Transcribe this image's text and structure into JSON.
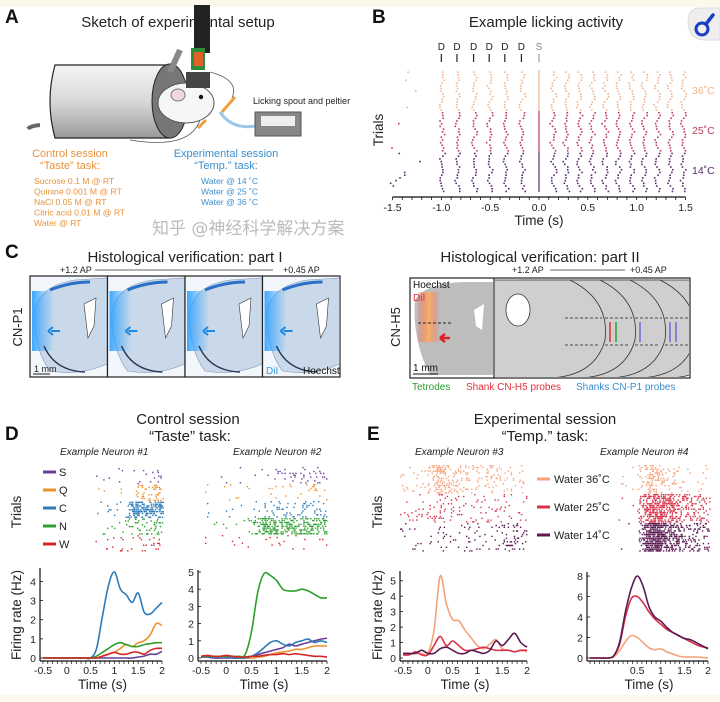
{
  "panel_a": {
    "label": "A",
    "title": "Sketch of experimental setup",
    "spout_label": "Licking spout and peltier",
    "control": {
      "title": "Control session",
      "task": "“Taste” task:",
      "color": "#e8923a",
      "items": [
        "Sucrose 0.1 M @ RT",
        "Quinine 0.001 M @ RT",
        "NaCl 0.05 M @ RT",
        "Citric acid 0.01 M @ RT",
        "Water @ RT"
      ]
    },
    "experimental": {
      "title": "Experimental session",
      "task": "“Temp.” task:",
      "color": "#3a8fd0",
      "items": [
        "Water @ 14 ˚C",
        "Water @ 25 ˚C",
        "Water @ 36 ˚C"
      ]
    }
  },
  "panel_b": {
    "label": "B",
    "title": "Example licking activity",
    "magnifier_icon": "magnifier-icon"
  },
  "panel_c": {
    "label": "C",
    "part1": {
      "title": "Histological verification: part I",
      "ap_start": "+1.2 AP",
      "ap_end": "+0.45 AP",
      "row_label": "CN-P1",
      "scale": "1 mm",
      "dye": "DiI",
      "stain": "Hoechst"
    },
    "part2": {
      "title": "Histological verification: part II",
      "ap_start": "+1.2 AP",
      "ap_end": "+0.45 AP",
      "row_label": "CN-H5",
      "scale": "1 mm",
      "dye": "DiI",
      "stain": "Hoechst",
      "legend": [
        {
          "label": "Tetrodes",
          "color": "#2ca02c"
        },
        {
          "label": "Shank CN-H5 probes",
          "color": "#e0303a"
        },
        {
          "label": "Shanks CN-P1 probes",
          "color": "#3a8fd0"
        }
      ]
    }
  },
  "panel_d": {
    "label": "D",
    "title": "Control session",
    "subtitle": "“Taste” task:",
    "raster_ylabel": "Trials",
    "legend": [
      {
        "label": "S",
        "color": "#6a3d9a"
      },
      {
        "label": "Q",
        "color": "#f0902a"
      },
      {
        "label": "C",
        "color": "#2b7bba"
      },
      {
        "label": "N",
        "color": "#2ca02c"
      },
      {
        "label": "W",
        "color": "#d62728"
      }
    ]
  },
  "panel_e": {
    "label": "E",
    "title": "Experimental session",
    "subtitle": "“Temp.” task:",
    "raster_ylabel": "Trials",
    "legend": [
      {
        "label": "Water 36˚C",
        "color": "#f4a37a"
      },
      {
        "label": "Water 25˚C",
        "color": "#d8324a"
      },
      {
        "label": "Water 14˚C",
        "color": "#5a1a52"
      }
    ]
  },
  "watermark": "知乎 @神经科学解决方案",
  "chart_data": [
    {
      "type": "scatter",
      "title": "Example licking activity",
      "xlabel": "Time (s)",
      "ylabel": "Trials",
      "xlim": [
        -1.5,
        1.5
      ],
      "xticks": [
        "-1.5",
        "-1.0",
        "-0.5",
        "0.0",
        "0.5",
        "1.0",
        "1.5"
      ],
      "cue_markers": {
        "D": [
          -1.0,
          -0.84,
          -0.67,
          -0.51,
          -0.35,
          -0.18
        ],
        "S": [
          0.0
        ]
      },
      "groups": [
        {
          "name": "36˚C",
          "color": "#f2b48e"
        },
        {
          "name": "25˚C",
          "color": "#c03a5a"
        },
        {
          "name": "14˚C",
          "color": "#5a2a6a"
        }
      ]
    },
    {
      "type": "line",
      "title": "Example Neuron #1",
      "xlabel": "Time (s)",
      "ylabel": "Firing rate (Hz)",
      "xlim": [
        -0.5,
        2
      ],
      "ylim": [
        0,
        4.6
      ],
      "xticks": [
        "-0.5",
        "0",
        "0.5",
        "1",
        "1.5",
        "2"
      ],
      "yticks": [
        "0",
        "1",
        "2",
        "3",
        "4"
      ],
      "x": [
        -0.5,
        -0.375,
        -0.25,
        -0.125,
        0,
        0.125,
        0.25,
        0.375,
        0.5,
        0.625,
        0.75,
        0.875,
        1,
        1.125,
        1.25,
        1.375,
        1.5,
        1.625,
        1.75,
        1.875,
        2
      ],
      "series": [
        {
          "name": "S",
          "color": "#6a3d9a",
          "values": [
            0,
            0,
            0,
            0,
            0,
            0,
            0,
            0,
            0,
            0,
            0,
            0,
            0,
            0,
            0,
            0,
            0.05,
            0.1,
            0.2,
            0.2,
            0.35
          ]
        },
        {
          "name": "Q",
          "color": "#f0902a",
          "values": [
            0,
            0,
            0,
            0,
            0,
            0,
            0,
            0,
            0,
            0,
            0.1,
            0.2,
            0.3,
            0.5,
            0.7,
            0.6,
            0.8,
            0.9,
            1.2,
            1.8,
            1.7
          ]
        },
        {
          "name": "C",
          "color": "#2b7bba",
          "values": [
            0,
            0,
            0,
            0,
            0,
            0,
            0,
            0,
            0,
            0.5,
            2.2,
            3.8,
            4.5,
            3.6,
            3.3,
            2.9,
            3.4,
            2.4,
            2.3,
            2.6,
            2.9
          ]
        },
        {
          "name": "N",
          "color": "#2ca02c",
          "values": [
            0,
            0,
            0,
            0,
            0,
            0,
            0,
            0,
            0,
            0.1,
            0.3,
            0.5,
            0.7,
            0.8,
            0.7,
            0.6,
            0.6,
            0.7,
            0.75,
            0.8,
            0.8
          ]
        },
        {
          "name": "W",
          "color": "#d62728",
          "values": [
            0,
            0,
            0,
            0,
            0,
            0,
            0,
            0,
            0,
            0,
            0.1,
            0.2,
            0.3,
            0.2,
            0.2,
            0.3,
            0.3,
            0.2,
            0.4,
            0.5,
            0.5
          ]
        }
      ]
    },
    {
      "type": "line",
      "title": "Example Neuron #2",
      "xlabel": "Time (s)",
      "xlim": [
        -0.5,
        2
      ],
      "ylim": [
        0,
        5
      ],
      "xticks": [
        "-0.5",
        "0",
        "0.5",
        "1",
        "1.5",
        "2"
      ],
      "yticks": [
        "0",
        "1",
        "2",
        "3",
        "4",
        "5"
      ],
      "x": [
        -0.5,
        -0.375,
        -0.25,
        -0.125,
        0,
        0.125,
        0.25,
        0.375,
        0.5,
        0.625,
        0.75,
        0.875,
        1,
        1.125,
        1.25,
        1.375,
        1.5,
        1.625,
        1.75,
        1.875,
        2
      ],
      "series": [
        {
          "name": "S",
          "color": "#6a3d9a",
          "values": [
            0.05,
            0.05,
            0,
            0,
            0,
            0,
            0,
            0.05,
            0.1,
            0.2,
            0.3,
            0.4,
            0.5,
            0.6,
            0.8,
            0.7,
            0.8,
            0.9,
            1.0,
            1.1,
            1.15
          ]
        },
        {
          "name": "Q",
          "color": "#f0902a",
          "values": [
            0.1,
            0.1,
            0.1,
            0.05,
            0.05,
            0.05,
            0,
            0,
            0,
            0.05,
            0.1,
            0.2,
            0.3,
            0.35,
            0.4,
            0.5,
            0.5,
            0.6,
            0.7,
            0.7,
            0.7
          ]
        },
        {
          "name": "C",
          "color": "#2b7bba",
          "values": [
            0.05,
            0.1,
            0.05,
            0.05,
            0.05,
            0,
            0,
            0,
            0.1,
            0.3,
            0.6,
            0.9,
            1.0,
            0.8,
            0.7,
            0.9,
            1.0,
            1.1,
            0.9,
            1.0,
            0.9
          ]
        },
        {
          "name": "N",
          "color": "#2ca02c",
          "values": [
            0.1,
            0.1,
            0.1,
            0.1,
            0.1,
            0.1,
            0.1,
            0.2,
            1.5,
            3.8,
            4.9,
            4.8,
            4.5,
            4.0,
            3.9,
            3.9,
            4.0,
            3.9,
            3.7,
            3.5,
            3.5
          ]
        },
        {
          "name": "W",
          "color": "#d62728",
          "values": [
            0.1,
            0.15,
            0.1,
            0.1,
            0.15,
            0.1,
            0.05,
            0.05,
            0.1,
            0.1,
            0.15,
            0.2,
            0.2,
            0.25,
            0.2,
            0.25,
            0.2,
            0.15,
            0.1,
            0.1,
            0.05
          ]
        }
      ]
    },
    {
      "type": "line",
      "title": "Example Neuron #3",
      "xlabel": "Time (s)",
      "ylabel": "Firing rate (Hz)",
      "xlim": [
        -0.5,
        2
      ],
      "ylim": [
        0,
        5.5
      ],
      "xticks": [
        "-0.5",
        "0",
        "0.5",
        "1",
        "1.5",
        "2"
      ],
      "yticks": [
        "0",
        "1",
        "2",
        "3",
        "4",
        "5"
      ],
      "x": [
        -0.5,
        -0.375,
        -0.25,
        -0.125,
        0,
        0.125,
        0.25,
        0.375,
        0.5,
        0.625,
        0.75,
        0.875,
        1,
        1.125,
        1.25,
        1.375,
        1.5,
        1.625,
        1.75,
        1.875,
        2
      ],
      "series": [
        {
          "name": "Water 36˚C",
          "color": "#f4a37a",
          "values": [
            0.3,
            0.3,
            0.3,
            0.3,
            0.3,
            1.8,
            5.3,
            3.5,
            2.5,
            2.4,
            1.8,
            1.3,
            0.8,
            0.6,
            0.9,
            1.2,
            0.6,
            0.5,
            0.4,
            0.5,
            0.4
          ]
        },
        {
          "name": "Water 25˚C",
          "color": "#d8324a",
          "values": [
            0.2,
            0.2,
            0.4,
            0.2,
            0.2,
            0.8,
            1.4,
            0.8,
            1.1,
            0.8,
            0.5,
            0.5,
            0.6,
            0.7,
            0.6,
            0.5,
            0.5,
            0.5,
            0.4,
            0.5,
            0.5
          ]
        },
        {
          "name": "Water 14˚C",
          "color": "#5a1a52",
          "values": [
            0.3,
            0.3,
            0.3,
            0.5,
            0.3,
            0.3,
            0.6,
            0.7,
            0.5,
            0.3,
            0.3,
            0.5,
            0.4,
            0.3,
            0.5,
            1.1,
            0.8,
            1.2,
            1.6,
            1.0,
            0.7
          ]
        }
      ]
    },
    {
      "type": "line",
      "title": "Example Neuron #4",
      "xlabel": "Time (s)",
      "xlim": [
        -0.5,
        2
      ],
      "ylim": [
        0,
        8.2
      ],
      "xticks": [
        "0.5",
        "1",
        "1.5",
        "2"
      ],
      "yticks": [
        "0",
        "2",
        "4",
        "6",
        "8"
      ],
      "x": [
        -0.5,
        -0.375,
        -0.25,
        -0.125,
        0,
        0.125,
        0.25,
        0.375,
        0.5,
        0.625,
        0.75,
        0.875,
        1,
        1.125,
        1.25,
        1.375,
        1.5,
        1.625,
        1.75,
        1.875,
        2
      ],
      "series": [
        {
          "name": "Water 36˚C",
          "color": "#f4a37a",
          "values": [
            0,
            0,
            0,
            0,
            0.1,
            0.7,
            1.6,
            2.2,
            2.0,
            1.5,
            1.0,
            0.8,
            0.9,
            0.6,
            0.4,
            0.2,
            0.1,
            0.1,
            0.1,
            0.05,
            0
          ]
        },
        {
          "name": "Water 25˚C",
          "color": "#d8324a",
          "values": [
            0,
            0,
            0,
            0,
            0.2,
            1.3,
            4.0,
            5.8,
            6.0,
            5.4,
            4.5,
            3.8,
            3.3,
            2.8,
            2.5,
            2.2,
            1.9,
            1.6,
            1.3,
            1.1,
            1.0
          ]
        },
        {
          "name": "Water 14˚C",
          "color": "#5a1a52",
          "values": [
            0,
            0,
            0,
            0,
            0.2,
            1.5,
            4.5,
            6.8,
            8.0,
            7.0,
            5.0,
            4.0,
            3.6,
            3.0,
            2.5,
            2.2,
            1.9,
            1.8,
            1.5,
            1.2,
            0.9
          ]
        }
      ]
    }
  ]
}
